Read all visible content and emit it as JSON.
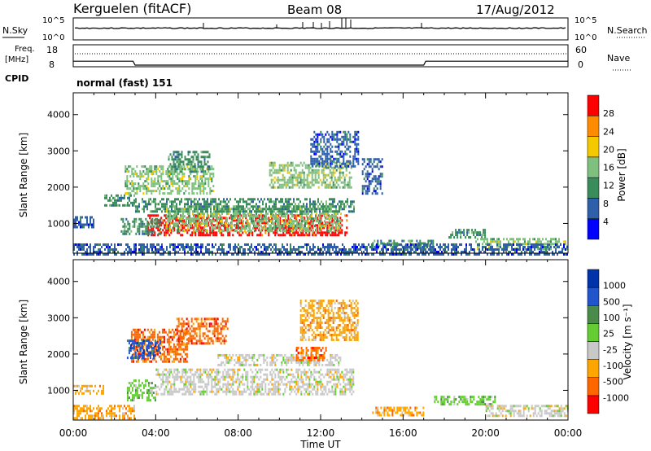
{
  "header": {
    "station": "Kerguelen (fitACF)",
    "beam": "Beam 08",
    "date": "17/Aug/2012"
  },
  "noise_panel": {
    "left_label": "N.Sky",
    "right_label": "N.Search",
    "left_ticks": [
      "10^5",
      "10^0"
    ],
    "right_ticks": [
      "10^5",
      "10^0"
    ]
  },
  "freq_panel": {
    "left_label_1": "Freq.",
    "left_label_2": "[MHz]",
    "left_ticks": [
      "18",
      "8"
    ],
    "right_label": "Nave",
    "right_ticks": [
      "60",
      "0"
    ]
  },
  "cpid": {
    "label": "CPID",
    "value": "normal (fast) 151"
  },
  "colors": {
    "power": [
      "#0000ff",
      "#2e5fa8",
      "#3a8c5a",
      "#7fc07f",
      "#f5c900",
      "#ff8c00",
      "#ff0000"
    ],
    "velocity": [
      "#ff0000",
      "#ff6600",
      "#ffa500",
      "#c8c8c8",
      "#66cc33",
      "#4a8a4a",
      "#2255cc",
      "#0033aa"
    ]
  },
  "chart_data": [
    {
      "type": "heatmap",
      "name": "power",
      "ylabel": "Slant Range [km]",
      "xlabel": "",
      "ylim": [
        180,
        4600
      ],
      "yticks": [
        1000,
        2000,
        3000,
        4000
      ],
      "xlim_hours": [
        0,
        24
      ],
      "colorbar": {
        "label": "Power [dB]",
        "ticks": [
          "4",
          "8",
          "12",
          "16",
          "20",
          "24",
          "28"
        ]
      },
      "regions": [
        {
          "t0": 3.6,
          "t1": 13.3,
          "r0": 700,
          "r1": 1250,
          "level": 6
        },
        {
          "t0": 4.5,
          "t1": 13.0,
          "r0": 800,
          "r1": 1500,
          "level": 3
        },
        {
          "t0": 3.0,
          "t1": 13.6,
          "r0": 1300,
          "r1": 1700,
          "level": 2
        },
        {
          "t0": 2.3,
          "t1": 4.2,
          "r0": 700,
          "r1": 1150,
          "level": 2
        },
        {
          "t0": 2.5,
          "t1": 6.8,
          "r0": 1800,
          "r1": 2600,
          "level": 3
        },
        {
          "t0": 4.6,
          "t1": 6.6,
          "r0": 2400,
          "r1": 3000,
          "level": 2
        },
        {
          "t0": 9.5,
          "t1": 13.5,
          "r0": 2000,
          "r1": 2700,
          "level": 3
        },
        {
          "t0": 11.5,
          "t1": 13.8,
          "r0": 2600,
          "r1": 3550,
          "level": 1
        },
        {
          "t0": 14.0,
          "t1": 15.0,
          "r0": 1800,
          "r1": 2800,
          "level": 1
        },
        {
          "t0": 14.5,
          "t1": 17.5,
          "r0": 300,
          "r1": 550,
          "level": 2
        },
        {
          "t0": 18.2,
          "t1": 20.0,
          "r0": 620,
          "r1": 850,
          "level": 2
        },
        {
          "t0": 19.5,
          "t1": 24.0,
          "r0": 300,
          "r1": 600,
          "level": 3
        },
        {
          "t0": 0.0,
          "t1": 24.0,
          "r0": 180,
          "r1": 450,
          "level": 1
        },
        {
          "t0": 0.0,
          "t1": 1.0,
          "r0": 900,
          "r1": 1200,
          "level": 1
        },
        {
          "t0": 1.5,
          "t1": 3.0,
          "r0": 1500,
          "r1": 1800,
          "level": 2
        }
      ]
    },
    {
      "type": "heatmap",
      "name": "velocity",
      "ylabel": "Slant Range [km]",
      "xlabel": "Time UT",
      "ylim": [
        180,
        4600
      ],
      "yticks": [
        1000,
        2000,
        3000,
        4000
      ],
      "xlim_hours": [
        0,
        24
      ],
      "xticks": [
        "00:00",
        "04:00",
        "08:00",
        "12:00",
        "16:00",
        "20:00",
        "00:00"
      ],
      "colorbar": {
        "label": "Velocity [m s⁻¹]",
        "ticks": [
          "-1000",
          "-500",
          "-100",
          "-25",
          "25",
          "100",
          "500",
          "1000"
        ]
      },
      "regions": [
        {
          "t0": 4.0,
          "t1": 13.6,
          "r0": 900,
          "r1": 1600,
          "level": 3
        },
        {
          "t0": 7.0,
          "t1": 13.0,
          "r0": 1700,
          "r1": 2000,
          "level": 3
        },
        {
          "t0": 2.6,
          "t1": 4.0,
          "r0": 700,
          "r1": 1300,
          "level": 4
        },
        {
          "t0": 2.8,
          "t1": 5.5,
          "r0": 1800,
          "r1": 2700,
          "level": 1
        },
        {
          "t0": 5.0,
          "t1": 7.5,
          "r0": 2300,
          "r1": 3000,
          "level": 1
        },
        {
          "t0": 2.6,
          "t1": 4.2,
          "r0": 1900,
          "r1": 2400,
          "level": 6
        },
        {
          "t0": 10.8,
          "t1": 12.3,
          "r0": 1800,
          "r1": 2200,
          "level": 1
        },
        {
          "t0": 11.0,
          "t1": 13.8,
          "r0": 2400,
          "r1": 3500,
          "level": 2
        },
        {
          "t0": 14.5,
          "t1": 17.0,
          "r0": 300,
          "r1": 550,
          "level": 2
        },
        {
          "t0": 17.5,
          "t1": 20.5,
          "r0": 600,
          "r1": 850,
          "level": 4
        },
        {
          "t0": 20.0,
          "t1": 24.0,
          "r0": 320,
          "r1": 600,
          "level": 3
        },
        {
          "t0": 0.0,
          "t1": 3.0,
          "r0": 200,
          "r1": 600,
          "level": 2
        },
        {
          "t0": 0.0,
          "t1": 1.5,
          "r0": 900,
          "r1": 1150,
          "level": 2
        }
      ]
    }
  ],
  "freq_series": {
    "t": [
      0,
      2.9,
      3.0,
      17.0,
      17.1,
      24
    ],
    "mhz": [
      13.5,
      13.5,
      10.0,
      10.0,
      13.5,
      13.5
    ]
  }
}
